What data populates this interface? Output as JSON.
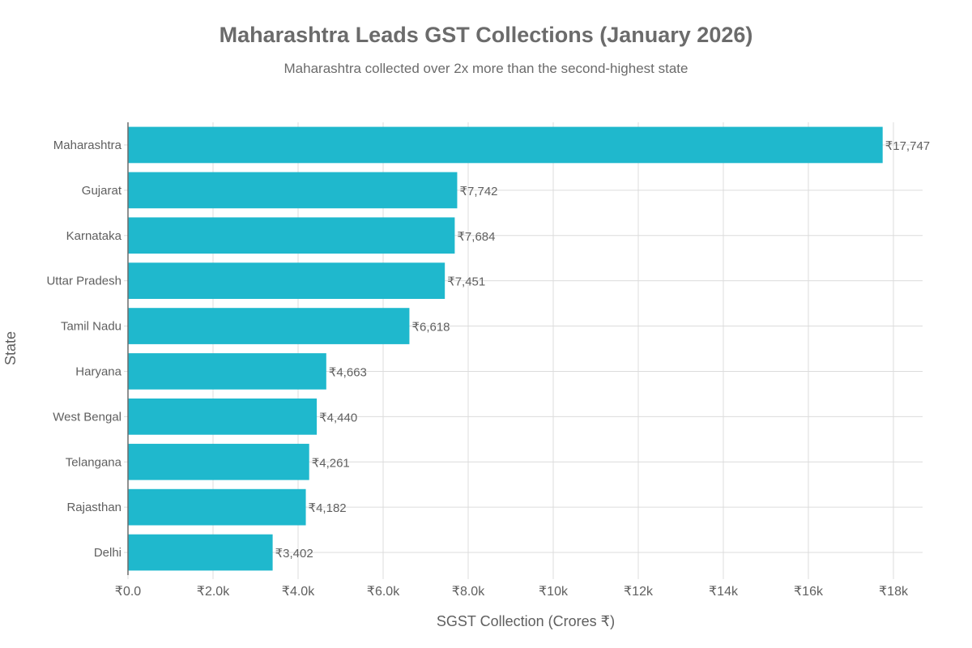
{
  "chart_data": {
    "type": "bar",
    "orientation": "horizontal",
    "title": "Maharashtra Leads GST Collections (January 2026)",
    "subtitle": "Maharashtra collected over 2x more than the second-highest state",
    "xlabel": "SGST Collection (Crores ₹)",
    "ylabel": "State",
    "categories": [
      "Maharashtra",
      "Gujarat",
      "Karnataka",
      "Uttar Pradesh",
      "Tamil Nadu",
      "Haryana",
      "West Bengal",
      "Telangana",
      "Rajasthan",
      "Delhi"
    ],
    "values": [
      17747,
      7742,
      7684,
      7451,
      6618,
      4663,
      4440,
      4261,
      4182,
      3402
    ],
    "data_labels": [
      "₹17,747",
      "₹7,742",
      "₹7,684",
      "₹7,451",
      "₹6,618",
      "₹4,663",
      "₹4,440",
      "₹4,261",
      "₹4,182",
      "₹3,402"
    ],
    "xlim": [
      0,
      18686
    ],
    "xticks": [
      0,
      2000,
      4000,
      6000,
      8000,
      10000,
      12000,
      14000,
      16000,
      18000
    ],
    "xtick_labels": [
      "₹0.0",
      "₹2.0k",
      "₹4.0k",
      "₹6.0k",
      "₹8.0k",
      "₹10k",
      "₹12k",
      "₹14k",
      "₹16k",
      "₹18k"
    ],
    "grid": true,
    "bar_color": "#1fb8cd"
  }
}
